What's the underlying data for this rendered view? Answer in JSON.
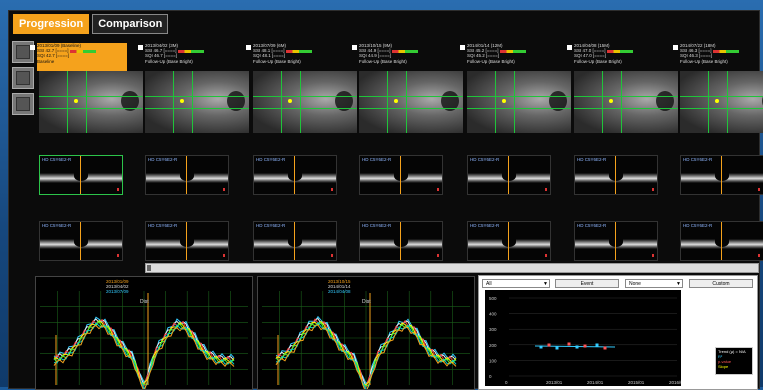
{
  "tabs": [
    {
      "label": "Progression",
      "active": true
    },
    {
      "label": "Comparison",
      "active": false
    }
  ],
  "scan_label": "HD C5Y6E2-R",
  "visits": [
    {
      "line1": "2013/01/09 (Baseline)",
      "line2": "SSI 42.7 [====]",
      "line3": "SQI 42.7 [====]",
      "line4": "Baseline",
      "selected": true
    },
    {
      "line1": "2013/04/02 (3M)",
      "line2": "SSI 46.7 [====]",
      "line3": "SQI 46.7 [====]",
      "line4": "Follow-Up (Base Bright)",
      "selected": false
    },
    {
      "line1": "2013/07/09 (6M)",
      "line2": "SSI 48.1 [====]",
      "line3": "SQI 48.1 [====]",
      "line4": "Follow-Up (Base Bright)",
      "selected": false
    },
    {
      "line1": "2013/10/15 (9M)",
      "line2": "SSI 44.9 [====]",
      "line3": "SQI 44.9 [====]",
      "line4": "Follow-Up (Base Bright)",
      "selected": false
    },
    {
      "line1": "2014/01/14 (12M)",
      "line2": "SSI 45.2 [====]",
      "line3": "SQI 45.2 [====]",
      "line4": "Follow-Up (Base Bright)",
      "selected": false
    },
    {
      "line1": "2014/04/08 (15M)",
      "line2": "SSI 47.0 [====]",
      "line3": "SQI 47.0 [====]",
      "line4": "Follow-Up (Base Bright)",
      "selected": false
    },
    {
      "line1": "2014/07/22 (18M)",
      "line2": "SSI 46.3 [====]",
      "line3": "SQI 46.3 [====]",
      "line4": "Follow-Up (Base Bright)",
      "selected": false
    }
  ],
  "plots": {
    "left_legend": [
      "2013/01/09",
      "2013/04/02",
      "2013/07/09"
    ],
    "right_legend": [
      "2013/10/15",
      "2014/01/14",
      "2014/04/08"
    ],
    "left_label": "Dist",
    "right_label": "Dist"
  },
  "trend_panel": {
    "dropdown1": "All",
    "event_button": "Event",
    "dropdown2": "None",
    "export_button": "Custom",
    "y_ticks": [
      "500",
      "400",
      "300",
      "200",
      "100",
      "0"
    ],
    "x_ticks": [
      "0",
      "2013/01",
      "2014/01",
      "2015/01",
      "2016/01"
    ],
    "legend": [
      "Trend (µ) = N/A",
      "R²",
      "p-value",
      "Slope"
    ]
  },
  "colors": {
    "accent": "#f5a21c",
    "overlay": "#1fc43a"
  }
}
